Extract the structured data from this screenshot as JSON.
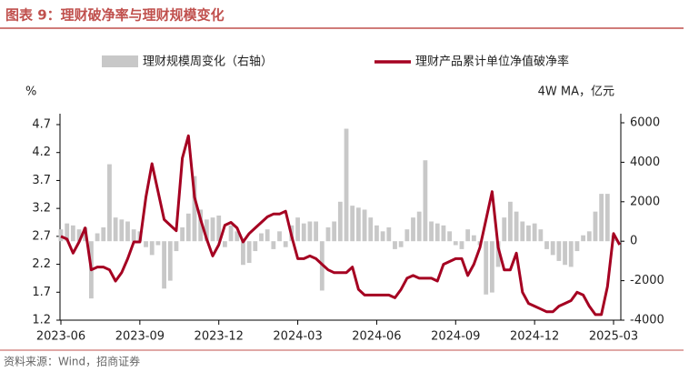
{
  "chart_data": {
    "type": "bar",
    "title": "图表 9：理财破净率与理财规模变化",
    "y_label": "%",
    "y2_label": "4W MA，亿元",
    "source": "资料来源：Wind，招商证券",
    "categories": [
      "2023-06",
      null,
      null,
      null,
      null,
      null,
      null,
      null,
      null,
      null,
      null,
      null,
      null,
      "2023-09",
      null,
      null,
      null,
      null,
      null,
      null,
      null,
      null,
      null,
      null,
      null,
      null,
      "2023-12",
      null,
      null,
      null,
      null,
      null,
      null,
      null,
      null,
      null,
      null,
      null,
      null,
      "2024-03",
      null,
      null,
      null,
      null,
      null,
      null,
      null,
      null,
      null,
      null,
      null,
      null,
      "2024-06",
      null,
      null,
      null,
      null,
      null,
      null,
      null,
      null,
      null,
      null,
      null,
      null,
      "2024-09",
      null,
      null,
      null,
      null,
      null,
      null,
      null,
      null,
      null,
      null,
      null,
      null,
      "2024-12",
      null,
      null,
      null,
      null,
      null,
      null,
      null,
      null,
      null,
      null,
      null,
      null,
      "2025-03",
      null
    ],
    "series": [
      {
        "name": "理财规模周变化（右轴）",
        "type": "bar",
        "axis": "y2",
        "color": "#c8c8c8",
        "values": [
          600,
          900,
          800,
          600,
          700,
          -2900,
          400,
          700,
          3900,
          1200,
          1100,
          1000,
          600,
          500,
          -300,
          -700,
          -200,
          -2400,
          -2000,
          -500,
          700,
          1400,
          3300,
          1600,
          1100,
          1200,
          1300,
          -300,
          800,
          500,
          -1200,
          -1100,
          -500,
          400,
          600,
          -400,
          500,
          -300,
          800,
          1200,
          900,
          1000,
          1000,
          -2500,
          700,
          1000,
          2000,
          5700,
          1800,
          1700,
          1600,
          1200,
          800,
          500,
          700,
          -400,
          -300,
          600,
          1200,
          1500,
          4100,
          1000,
          900,
          800,
          500,
          -200,
          -400,
          600,
          300,
          -200,
          -2700,
          -2600,
          -1300,
          1200,
          2000,
          1500,
          1000,
          800,
          900,
          600,
          -400,
          -700,
          -1000,
          -1200,
          -1300,
          -500,
          300,
          500,
          1500,
          2400,
          2400,
          300,
          null
        ]
      },
      {
        "name": "理财产品累计单位净值破净率",
        "type": "line",
        "color": "#a50021",
        "values": [
          2.7,
          2.65,
          2.4,
          2.6,
          2.85,
          2.1,
          2.15,
          2.15,
          2.1,
          1.9,
          2.05,
          2.3,
          2.6,
          2.6,
          3.4,
          4.0,
          3.5,
          3.0,
          2.9,
          2.8,
          4.1,
          4.5,
          3.4,
          3.0,
          2.65,
          2.35,
          2.55,
          2.9,
          2.95,
          2.85,
          2.6,
          2.75,
          2.85,
          2.95,
          3.05,
          3.1,
          3.1,
          3.15,
          2.7,
          2.3,
          2.3,
          2.35,
          2.3,
          2.2,
          2.1,
          2.05,
          2.05,
          2.05,
          2.15,
          1.75,
          1.65,
          1.65,
          1.65,
          1.65,
          1.65,
          1.6,
          1.75,
          1.95,
          2.0,
          1.95,
          1.95,
          1.95,
          1.9,
          2.2,
          2.25,
          2.3,
          2.3,
          2.0,
          2.2,
          2.5,
          3.0,
          3.5,
          2.5,
          2.1,
          2.1,
          2.4,
          1.7,
          1.5,
          1.45,
          1.4,
          1.35,
          1.35,
          1.45,
          1.5,
          1.55,
          1.7,
          1.65,
          1.45,
          1.3,
          1.3,
          1.8,
          2.75,
          2.55
        ]
      }
    ],
    "ylim": [
      1.2,
      4.7
    ],
    "yticks": [
      1.2,
      1.7,
      2.2,
      2.7,
      3.2,
      3.7,
      4.2,
      4.7
    ],
    "y2lim": [
      -4000,
      6000
    ],
    "y2ticks": [
      -4000,
      -2000,
      0,
      2000,
      4000,
      6000
    ],
    "grid": false,
    "legend": "top"
  }
}
